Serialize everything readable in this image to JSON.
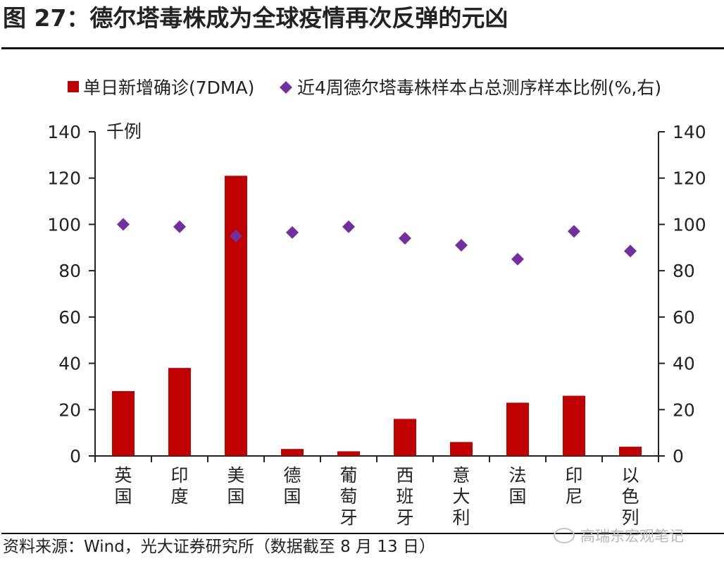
{
  "figure": {
    "title": "图 27：德尔塔毒株成为全球疫情再次反弹的元凶",
    "source": "资料来源：Wind，光大证券研究所（数据截至 8 月 13 日）",
    "watermark": "高瑞东宏观笔记",
    "watermark_icon": "wechat-icon"
  },
  "chart_data": {
    "type": "bar",
    "categories": [
      "英国",
      "印度",
      "美国",
      "德国",
      "葡萄牙",
      "西班牙",
      "意大利",
      "法国",
      "印尼",
      "以色列"
    ],
    "series": [
      {
        "name": "单日新增确诊(7DMA)",
        "type": "bar",
        "axis": "left",
        "color": "#c00000",
        "values": [
          28,
          38,
          121,
          3,
          2,
          16,
          6,
          23,
          26,
          4
        ]
      },
      {
        "name": "近4周德尔塔毒株样本占总测序样本比例(%,右)",
        "type": "scatter",
        "marker": "diamond",
        "axis": "right",
        "color": "#7030a0",
        "values": [
          100,
          99,
          95,
          96.5,
          99,
          94,
          91,
          85,
          97,
          88.5
        ]
      }
    ],
    "y_left": {
      "label": "千例",
      "lim": [
        0,
        140
      ],
      "ticks": [
        "0",
        "20",
        "40",
        "60",
        "80",
        "100",
        "120",
        "140"
      ]
    },
    "y_right": {
      "lim": [
        0,
        140
      ],
      "ticks": [
        "0",
        "20",
        "40",
        "60",
        "80",
        "100",
        "120",
        "140"
      ]
    },
    "grid": false,
    "legend_position": "top"
  }
}
